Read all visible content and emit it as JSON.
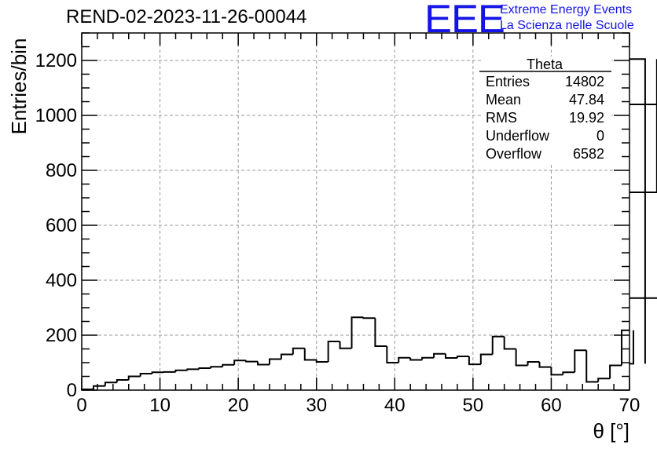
{
  "title": "REND-02-2023-11-26-00044",
  "logo": {
    "mark": "EEE",
    "line1": "Extreme Energy Events",
    "line2": "La Scienza nelle Scuole",
    "color": "#1414e6"
  },
  "chart_data": {
    "type": "bar",
    "title": "REND-02-2023-11-26-00044",
    "xlabel": "θ [°]",
    "ylabel": "Entries/bin",
    "xlim": [
      0,
      70
    ],
    "ylim": [
      0,
      1300
    ],
    "xticks": [
      0,
      10,
      20,
      30,
      40,
      50,
      60,
      70
    ],
    "yticks": [
      0,
      200,
      400,
      600,
      800,
      1000,
      1200
    ],
    "grid": true,
    "bin_width": 1.5,
    "bin_start": 0,
    "values": [
      3,
      15,
      28,
      37,
      50,
      60,
      65,
      66,
      72,
      76,
      80,
      85,
      92,
      108,
      104,
      93,
      113,
      130,
      152,
      110,
      103,
      177,
      152,
      265,
      262,
      160,
      100,
      118,
      110,
      118,
      132,
      117,
      123,
      94,
      130,
      195,
      150,
      90,
      103,
      84,
      56,
      65,
      145,
      30,
      42,
      90,
      218,
      96,
      1205,
      720,
      335,
      1040
    ],
    "stats": {
      "name": "Theta",
      "rows": [
        {
          "label": "Entries",
          "value": "14802"
        },
        {
          "label": "Mean",
          "value": "47.84"
        },
        {
          "label": "RMS",
          "value": "19.92"
        },
        {
          "label": "Underflow",
          "value": "0"
        },
        {
          "label": "Overflow",
          "value": "6582"
        }
      ],
      "placement": "top-right"
    }
  }
}
